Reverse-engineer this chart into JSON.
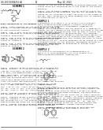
{
  "background_color": "#ffffff",
  "text_color": "#1a1a1a",
  "line_color": "#1a1a1a",
  "header_left": "US 2013/0184251 A1",
  "header_center": "13",
  "header_right": "May 18, 2013",
  "font_size_tiny": 1.6,
  "font_size_small": 1.9,
  "font_size_body": 2.1,
  "font_size_label": 2.3
}
